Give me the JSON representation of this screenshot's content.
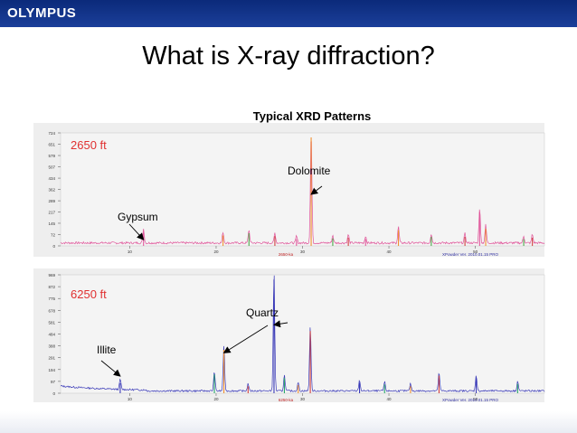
{
  "header": {
    "brand": "OLYMPUS"
  },
  "slide": {
    "title": "What is X-ray diffraction?",
    "subtitle": "Typical XRD Patterns"
  },
  "chart_data": [
    {
      "type": "line",
      "depth_label": "2650 ft",
      "xlabel": "2650-ka",
      "footer": "XPowder Ver. 2010.01.15 PRO",
      "xlim": [
        2,
        58
      ],
      "ylim": [
        0,
        724
      ],
      "yticks": [
        0,
        72,
        145,
        217,
        289,
        362,
        434,
        507,
        579,
        651,
        724
      ],
      "xticks": [
        10,
        20,
        30,
        40,
        50
      ],
      "annotations": [
        {
          "text": "Dolomite",
          "target_x": 31.0,
          "target_y": 330
        },
        {
          "text": "Gypsum",
          "target_x": 11.6,
          "target_y": 40
        }
      ],
      "peaks": [
        {
          "x": 11.6,
          "y": 90
        },
        {
          "x": 20.8,
          "y": 70
        },
        {
          "x": 23.8,
          "y": 85
        },
        {
          "x": 26.8,
          "y": 65
        },
        {
          "x": 29.3,
          "y": 45
        },
        {
          "x": 31.0,
          "y": 724
        },
        {
          "x": 33.5,
          "y": 50
        },
        {
          "x": 35.3,
          "y": 55
        },
        {
          "x": 37.3,
          "y": 45
        },
        {
          "x": 41.1,
          "y": 105
        },
        {
          "x": 44.9,
          "y": 60
        },
        {
          "x": 48.8,
          "y": 60
        },
        {
          "x": 50.5,
          "y": 225
        },
        {
          "x": 51.2,
          "y": 115
        },
        {
          "x": 55.6,
          "y": 45
        },
        {
          "x": 56.6,
          "y": 55
        }
      ]
    },
    {
      "type": "line",
      "depth_label": "6250 ft",
      "xlabel": "6250-ka",
      "footer": "XPowder Ver. 2010.01.15 PRO",
      "xlim": [
        2,
        58
      ],
      "ylim": [
        0,
        969
      ],
      "yticks": [
        0,
        97,
        194,
        291,
        388,
        484,
        581,
        678,
        775,
        872,
        969
      ],
      "xticks": [
        10,
        20,
        30,
        40,
        50
      ],
      "annotations": [
        {
          "text": "Quartz",
          "target_x": 20.9,
          "target_y": 330
        },
        {
          "text": "Quartz",
          "target_x": 26.7,
          "target_y": 560
        },
        {
          "text": "Illite",
          "target_x": 8.9,
          "target_y": 140
        }
      ],
      "peaks": [
        {
          "x": 8.9,
          "y": 85
        },
        {
          "x": 19.8,
          "y": 160
        },
        {
          "x": 20.9,
          "y": 370
        },
        {
          "x": 23.7,
          "y": 60
        },
        {
          "x": 26.7,
          "y": 969
        },
        {
          "x": 27.9,
          "y": 130
        },
        {
          "x": 29.5,
          "y": 70
        },
        {
          "x": 30.9,
          "y": 530
        },
        {
          "x": 36.6,
          "y": 90
        },
        {
          "x": 39.5,
          "y": 75
        },
        {
          "x": 42.5,
          "y": 60
        },
        {
          "x": 45.8,
          "y": 150
        },
        {
          "x": 50.1,
          "y": 130
        },
        {
          "x": 54.9,
          "y": 80
        }
      ]
    }
  ]
}
